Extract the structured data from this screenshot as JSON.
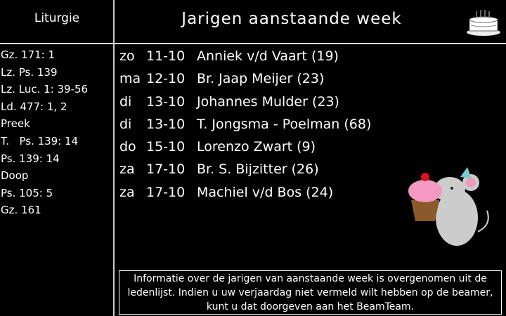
{
  "sidebar": {
    "title": "Liturgie",
    "items": [
      "Gz. 171: 1",
      "Lz. Ps. 139",
      "Lz. Luc. 1: 39-56",
      "Ld. 477: 1, 2",
      "Preek",
      "T.   Ps. 139: 14",
      "Ps. 139: 14",
      "Doop",
      "Ps. 105: 5",
      "Gz. 161"
    ]
  },
  "main": {
    "title": "Jarigen aanstaande week",
    "birthdays": [
      {
        "day": "zo",
        "date": "11-10",
        "name": "Anniek v/d Vaart (19)"
      },
      {
        "day": "ma",
        "date": "12-10",
        "name": "Br. Jaap Meijer (23)"
      },
      {
        "day": "di",
        "date": "13-10",
        "name": "Johannes Mulder (23)"
      },
      {
        "day": "di",
        "date": "13-10",
        "name": "T. Jongsma - Poelman (68)"
      },
      {
        "day": "do",
        "date": "15-10",
        "name": "Lorenzo Zwart (9)"
      },
      {
        "day": "za",
        "date": "17-10",
        "name": "Br. S. Bijzitter (26)"
      },
      {
        "day": "za",
        "date": "17-10",
        "name": "Machiel v/d Bos (24)"
      }
    ],
    "note": "Informatie over de jarigen van aanstaande week is overgenomen uit de ledenlijst. Indien u uw verjaardag niet vermeld wilt hebben op de beamer, kunt u dat doorgeven aan het BeamTeam.",
    "icons": [
      "birthday-cake-icon",
      "mouse-with-cupcake-illustration"
    ]
  }
}
